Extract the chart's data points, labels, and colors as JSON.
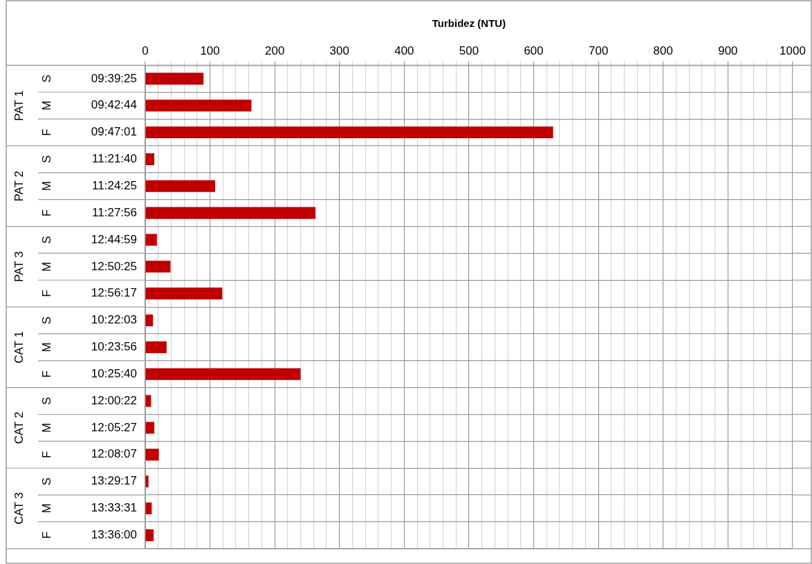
{
  "chart_data": {
    "type": "bar",
    "orientation": "horizontal",
    "xlabel": "Turbidez (NTU)",
    "categories": [
      "09:39:25",
      "09:42:44",
      "09:47:01",
      "11:21:40",
      "11:24:25",
      "11:27:56",
      "12:44:59",
      "12:50:25",
      "12:56:17",
      "10:22:03",
      "10:23:56",
      "10:25:40",
      "12:00:22",
      "12:05:27",
      "12:08:07",
      "13:29:17",
      "13:33:31",
      "13:36:00"
    ],
    "values": [
      90,
      164,
      630,
      14,
      108,
      263,
      18,
      39,
      119,
      12,
      33,
      240,
      9,
      14,
      21,
      5,
      10,
      13
    ],
    "color": "#c00000",
    "xlim": [
      0,
      1000
    ],
    "xticks": [
      0,
      {
        "value": 20,
        "label": null
      },
      {
        "value": 40,
        "label": null
      },
      {
        "value": 60,
        "label": null
      },
      {
        "value": 80,
        "label": null
      },
      100,
      {
        "value": 120,
        "label": null
      },
      {
        "value": 140,
        "label": null
      },
      {
        "value": 160,
        "label": null
      },
      {
        "value": 180,
        "label": null
      },
      200,
      {
        "value": 220,
        "label": null
      },
      {
        "value": 240,
        "label": null
      },
      {
        "value": 260,
        "label": null
      },
      {
        "value": 280,
        "label": null
      },
      300,
      {
        "value": 320,
        "label": null
      },
      {
        "value": 340,
        "label": null
      },
      {
        "value": 360,
        "label": null
      },
      {
        "value": 380,
        "label": null
      },
      400,
      {
        "value": 420,
        "label": null
      },
      {
        "value": 440,
        "label": null
      },
      {
        "value": 460,
        "label": null
      },
      {
        "value": 480,
        "label": null
      },
      500,
      {
        "value": 520,
        "label": null
      },
      {
        "value": 540,
        "label": null
      },
      {
        "value": 560,
        "label": null
      },
      {
        "value": 580,
        "label": null
      },
      600,
      {
        "value": 620,
        "label": null
      },
      {
        "value": 640,
        "label": null
      },
      {
        "value": 660,
        "label": null
      },
      {
        "value": 680,
        "label": null
      },
      700,
      {
        "value": 720,
        "label": null
      },
      {
        "value": 740,
        "label": null
      },
      {
        "value": 760,
        "label": null
      },
      {
        "value": 780,
        "label": null
      },
      800,
      {
        "value": 820,
        "label": null
      },
      {
        "value": 840,
        "label": null
      },
      {
        "value": 860,
        "label": null
      },
      {
        "value": 880,
        "label": null
      },
      900,
      {
        "value": 920,
        "label": null
      },
      {
        "value": 940,
        "label": null
      },
      {
        "value": 960,
        "label": null
      },
      {
        "value": 980,
        "label": null
      },
      1000
    ],
    "grid": true,
    "annotations": [
      "PAT 1",
      "S",
      "M",
      "F",
      "PAT 2",
      "S",
      "M",
      "F",
      "PAT 3",
      "S",
      "M",
      "F",
      "CAT 1",
      "S",
      "M",
      "F",
      "CAT 2",
      "S",
      "M",
      "F",
      "CAT 3",
      "S",
      "M",
      "F"
    ]
  }
}
